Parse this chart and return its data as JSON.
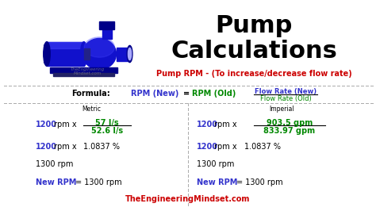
{
  "bg_color": "#ffffff",
  "title_line1": "Pump",
  "title_line2": "Calculations",
  "subtitle": "Pump RPM - (To increase/decrease flow rate)",
  "subtitle_color": "#cc0000",
  "title_color": "#000000",
  "formula_label": "Formula:",
  "rpm_new_color": "#3333cc",
  "rpm_old_color": "#008800",
  "divider_color": "#aaaaaa",
  "website": "TheEngineeringMindset.com",
  "website_color": "#cc0000",
  "flow_rate_new": "Flow Rate (New)",
  "flow_rate_old": "Flow Rate (Old)",
  "flow_rate_color_new": "#3333cc",
  "flow_rate_color_old": "#008800",
  "pump_color": "#1111cc",
  "pump_light": "#4444ff",
  "pump_dark": "#000088",
  "metric_label": "Metric",
  "imperial_label": "Imperial",
  "blue": "#3333cc",
  "green": "#008800",
  "black": "#000000",
  "red": "#cc0000"
}
